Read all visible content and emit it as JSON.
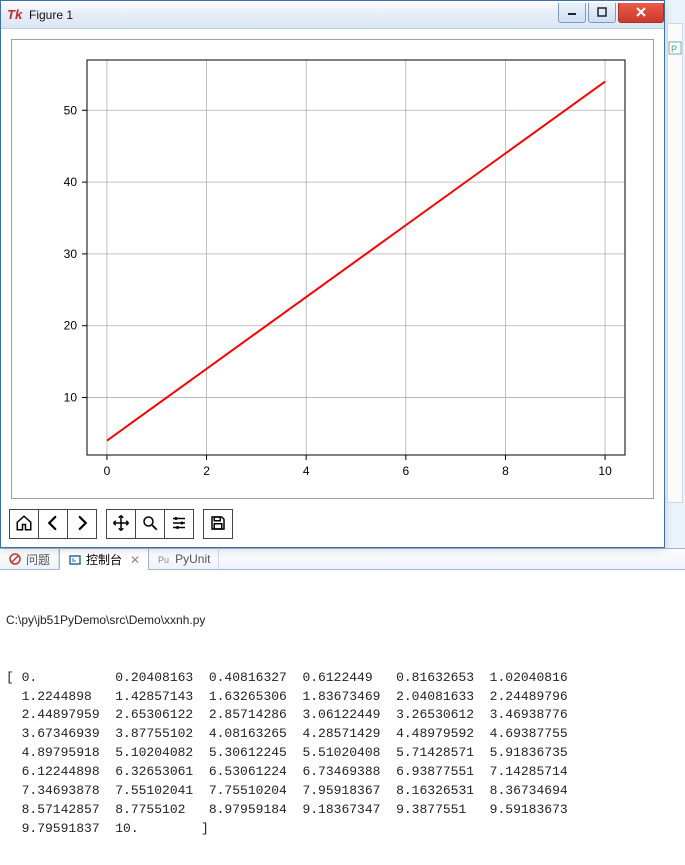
{
  "window": {
    "title": "Figure 1",
    "icon_label": "Tk"
  },
  "chart": {
    "type": "line",
    "xlim": [
      -0.4,
      10.4
    ],
    "ylim": [
      2,
      57
    ],
    "xticks": [
      0,
      2,
      4,
      6,
      8,
      10
    ],
    "yticks": [
      10,
      20,
      30,
      40,
      50
    ],
    "xtick_labels": [
      "0",
      "2",
      "4",
      "6",
      "8",
      "10"
    ],
    "ytick_labels": [
      "10",
      "20",
      "30",
      "40",
      "50"
    ],
    "line_color": "#ff0000",
    "line_width": 2,
    "grid_color": "#b0b0b0",
    "axis_color": "#000000",
    "background_color": "#ffffff",
    "tick_fontsize": 12,
    "points": {
      "x": [
        0,
        10
      ],
      "y": [
        4,
        54
      ]
    }
  },
  "toolbar": {
    "buttons": [
      {
        "name": "home-icon",
        "title": "Home"
      },
      {
        "name": "back-icon",
        "title": "Back"
      },
      {
        "name": "forward-icon",
        "title": "Forward"
      },
      {
        "gap": true
      },
      {
        "name": "pan-icon",
        "title": "Pan"
      },
      {
        "name": "zoom-icon",
        "title": "Zoom"
      },
      {
        "name": "configure-icon",
        "title": "Configure subplots"
      },
      {
        "gap": true
      },
      {
        "name": "save-icon",
        "title": "Save"
      }
    ]
  },
  "ide": {
    "tabs": [
      {
        "label": "问题",
        "icon": "problems-icon",
        "active": false
      },
      {
        "label": "控制台",
        "icon": "console-icon",
        "active": true
      },
      {
        "label": "PyUnit",
        "icon": "pyunit-icon",
        "active": false
      }
    ],
    "path": "C:\\py\\jb51PyDemo\\src\\Demo\\xxnh.py",
    "output_rows": [
      [
        "[ 0.",
        "0.20408163",
        "0.40816327",
        "0.6122449",
        "0.81632653",
        "1.02040816"
      ],
      [
        "1.2244898",
        "1.42857143",
        "1.63265306",
        "1.83673469",
        "2.04081633",
        "2.24489796"
      ],
      [
        "2.44897959",
        "2.65306122",
        "2.85714286",
        "3.06122449",
        "3.26530612",
        "3.46938776"
      ],
      [
        "3.67346939",
        "3.87755102",
        "4.08163265",
        "4.28571429",
        "4.48979592",
        "4.69387755"
      ],
      [
        "4.89795918",
        "5.10204082",
        "5.30612245",
        "5.51020408",
        "5.71428571",
        "5.91836735"
      ],
      [
        "6.12244898",
        "6.32653061",
        "6.53061224",
        "6.73469388",
        "6.93877551",
        "7.14285714"
      ],
      [
        "7.34693878",
        "7.55102041",
        "7.75510204",
        "7.95918367",
        "8.16326531",
        "8.36734694"
      ],
      [
        "8.57142857",
        "8.7755102",
        "8.97959184",
        "9.18367347",
        "9.3877551",
        "9.59183673"
      ],
      [
        "9.79591837",
        "10.        ]",
        "",
        "",
        "",
        ""
      ]
    ],
    "col_width_ch": 12
  },
  "colors": {
    "window_border": "#3f6fa9",
    "ide_border": "#9fb6d4",
    "close_bg": "#c93a2b"
  }
}
